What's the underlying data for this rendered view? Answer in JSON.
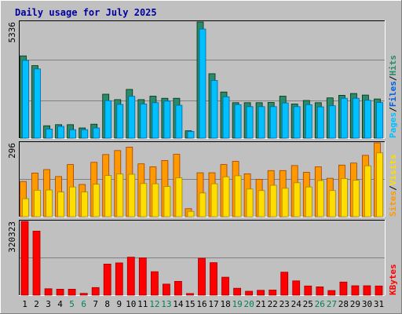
{
  "chart_data": {
    "type": "bar",
    "title": "Daily usage for July 2025",
    "categories": [
      "1",
      "2",
      "3",
      "4",
      "5",
      "6",
      "7",
      "8",
      "9",
      "10",
      "11",
      "12",
      "13",
      "14",
      "15",
      "16",
      "17",
      "18",
      "19",
      "20",
      "21",
      "22",
      "23",
      "24",
      "25",
      "26",
      "27",
      "28",
      "29",
      "30",
      "31"
    ],
    "weekend_days": [
      "5",
      "6",
      "12",
      "13",
      "19",
      "20",
      "26",
      "27"
    ],
    "panels": [
      {
        "name": "hits-files-pages",
        "max_label": "5336",
        "ymax": 5336,
        "series": [
          {
            "name": "Hits",
            "color": "#2a8a6a",
            "values": [
              3780,
              3330,
              570,
              620,
              620,
              470,
              640,
              2020,
              1770,
              2240,
              1770,
              1930,
              1830,
              1830,
              340,
              5336,
              2960,
              2120,
              1630,
              1630,
              1630,
              1640,
              1930,
              1570,
              1730,
              1630,
              1850,
              1970,
              2050,
              1980,
              1800
            ]
          },
          {
            "name": "Files",
            "color": "#00c0ff",
            "values": [
              3570,
              3180,
              420,
              540,
              390,
              390,
              470,
              1720,
              1550,
              1920,
              1570,
              1630,
              1700,
              1510,
              310,
              5010,
              2650,
              1900,
              1540,
              1450,
              1450,
              1450,
              1620,
              1450,
              1540,
              1440,
              1490,
              1830,
              1830,
              1740,
              1640
            ]
          },
          {
            "name": "Pages",
            "color": "#00a0c0",
            "values": [
              0,
              0,
              0,
              0,
              0,
              0,
              0,
              0,
              0,
              0,
              0,
              0,
              0,
              0,
              0,
              0,
              0,
              0,
              0,
              0,
              0,
              0,
              0,
              0,
              0,
              0,
              0,
              0,
              0,
              0,
              0
            ]
          }
        ],
        "legend": [
          {
            "label": "Pages",
            "color": "#00c0ff"
          },
          {
            "label": "Files",
            "color": "#0060e0"
          },
          {
            "label": "Hits",
            "color": "#2a8a6a"
          }
        ]
      },
      {
        "name": "sites-visits",
        "max_label": "296",
        "ymax": 296,
        "series": [
          {
            "name": "Visits",
            "color": "#ff9900",
            "values": [
              141,
              175,
              189,
              161,
              209,
              129,
              218,
              249,
              265,
              279,
              212,
              200,
              225,
              250,
              32,
              176,
              176,
              209,
              222,
              172,
              150,
              185,
              185,
              205,
              178,
              200,
              154,
              207,
              215,
              246,
              296
            ]
          },
          {
            "name": "Sites",
            "color": "#ffdd00",
            "values": [
              72,
              106,
              107,
              99,
              119,
              99,
              130,
              165,
              171,
              170,
              133,
              132,
              121,
              156,
              21,
              95,
              132,
              160,
              164,
              111,
              105,
              126,
              114,
              136,
              119,
              145,
              105,
              153,
              146,
              204,
              256
            ]
          }
        ],
        "legend": [
          {
            "label": "Sites",
            "color": "#ff9900"
          },
          {
            "label": "Visits",
            "color": "#ffdd00"
          }
        ]
      },
      {
        "name": "kbytes",
        "max_label": "320323",
        "ymax": 320323,
        "series": [
          {
            "name": "KBytes",
            "color": "#ff0000",
            "values": [
              320323,
              278000,
              28000,
              26000,
              26000,
              8000,
              33000,
              135000,
              140000,
              165000,
              162000,
              102000,
              48000,
              60000,
              7000,
              160000,
              141000,
              78000,
              30000,
              17000,
              21000,
              22000,
              100000,
              62000,
              40000,
              36000,
              20000,
              57000,
              41000,
              41000,
              40000
            ]
          }
        ],
        "legend": [
          {
            "label": "KBytes",
            "color": "#ff0000"
          }
        ]
      }
    ]
  }
}
